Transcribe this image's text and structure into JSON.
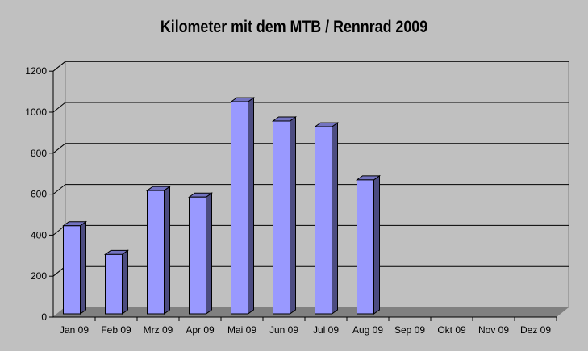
{
  "chart_data": {
    "type": "bar",
    "title": "Kilometer mit dem MTB / Rennrad 2009",
    "categories": [
      "Jan 09",
      "Feb 09",
      "Mrz 09",
      "Apr 09",
      "Mai 09",
      "Jun 09",
      "Jul 09",
      "Aug 09",
      "Sep 09",
      "Okt 09",
      "Nov 09",
      "Dez 09"
    ],
    "values": [
      430,
      290,
      602,
      570,
      1035,
      941,
      913,
      654,
      null,
      null,
      null,
      null
    ],
    "yticks": [
      "0",
      "200",
      "400",
      "600",
      "800",
      "1000",
      "1200"
    ],
    "ylim": [
      0,
      1200
    ],
    "grid": true,
    "style": "3d-column",
    "colors": {
      "bar_front": "#9999ff",
      "bar_side": "#4c4c80",
      "bar_top": "#7373c0",
      "floor": "#808080",
      "background": "#c0c0c0"
    }
  }
}
